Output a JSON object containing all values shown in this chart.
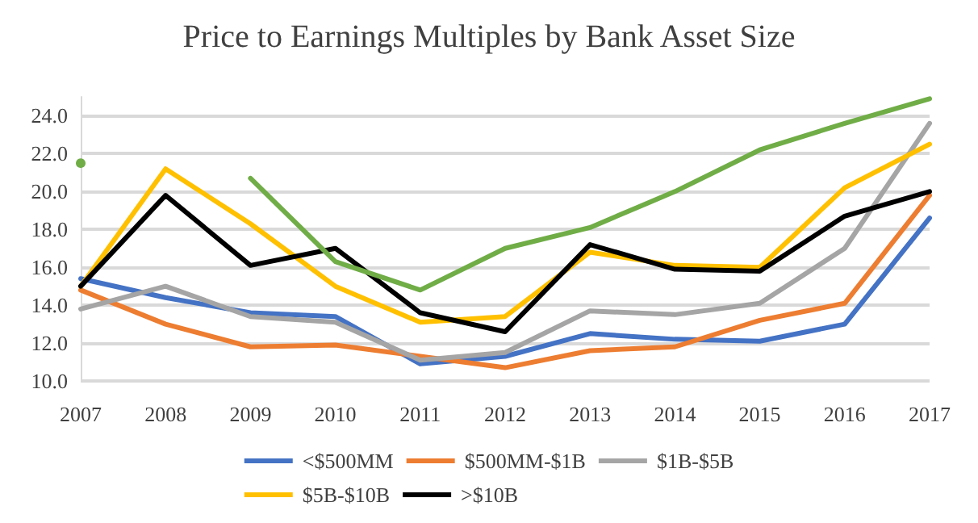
{
  "chart_data": {
    "type": "line",
    "title": "Price to Earnings Multiples by Bank Asset Size",
    "categories": [
      "2007",
      "2008",
      "2009",
      "2010",
      "2011",
      "2012",
      "2013",
      "2014",
      "2015",
      "2016",
      "2017"
    ],
    "series": [
      {
        "name": "<$500MM",
        "color": "#4472c4",
        "values": [
          15.4,
          14.4,
          13.6,
          13.4,
          10.9,
          11.3,
          12.5,
          12.2,
          12.1,
          13.0,
          18.6
        ]
      },
      {
        "name": "$500MM-$1B",
        "color": "#ed7d31",
        "values": [
          14.8,
          13.0,
          11.8,
          11.9,
          11.3,
          10.7,
          11.6,
          11.8,
          13.2,
          14.1,
          19.8
        ]
      },
      {
        "name": "$1B-$5B",
        "color": "#a5a5a5",
        "values": [
          13.8,
          15.0,
          13.4,
          13.1,
          11.1,
          11.5,
          13.7,
          13.5,
          14.1,
          17.0,
          23.6
        ]
      },
      {
        "name": "$5B-$10B",
        "color": "#ffc000",
        "values": [
          15.0,
          21.2,
          18.3,
          15.0,
          13.1,
          13.4,
          16.8,
          16.1,
          16.0,
          20.2,
          22.5
        ]
      },
      {
        "name": ">$10B",
        "color": "#000000",
        "values": [
          15.0,
          19.8,
          16.1,
          17.0,
          13.6,
          12.6,
          17.2,
          15.9,
          15.8,
          18.7,
          20.0
        ]
      },
      {
        "color": "#70ad47",
        "values": [
          21.5,
          null,
          20.7,
          16.3,
          14.8,
          17.0,
          18.1,
          20.0,
          22.2,
          23.6,
          24.9
        ]
      }
    ],
    "ylim": [
      10,
      25
    ],
    "yticks": [
      {
        "value": 10,
        "label": "10.0"
      },
      {
        "value": 12,
        "label": "12.0"
      },
      {
        "value": 14,
        "label": "14.0"
      },
      {
        "value": 16,
        "label": "16.0"
      },
      {
        "value": 18,
        "label": "18.0"
      },
      {
        "value": 20,
        "label": "20.0"
      },
      {
        "value": 22,
        "label": "22.0"
      },
      {
        "value": 24,
        "label": "24.0"
      }
    ],
    "grid": "y",
    "legend": "bottom",
    "marker": "none",
    "line_style": "solid"
  }
}
